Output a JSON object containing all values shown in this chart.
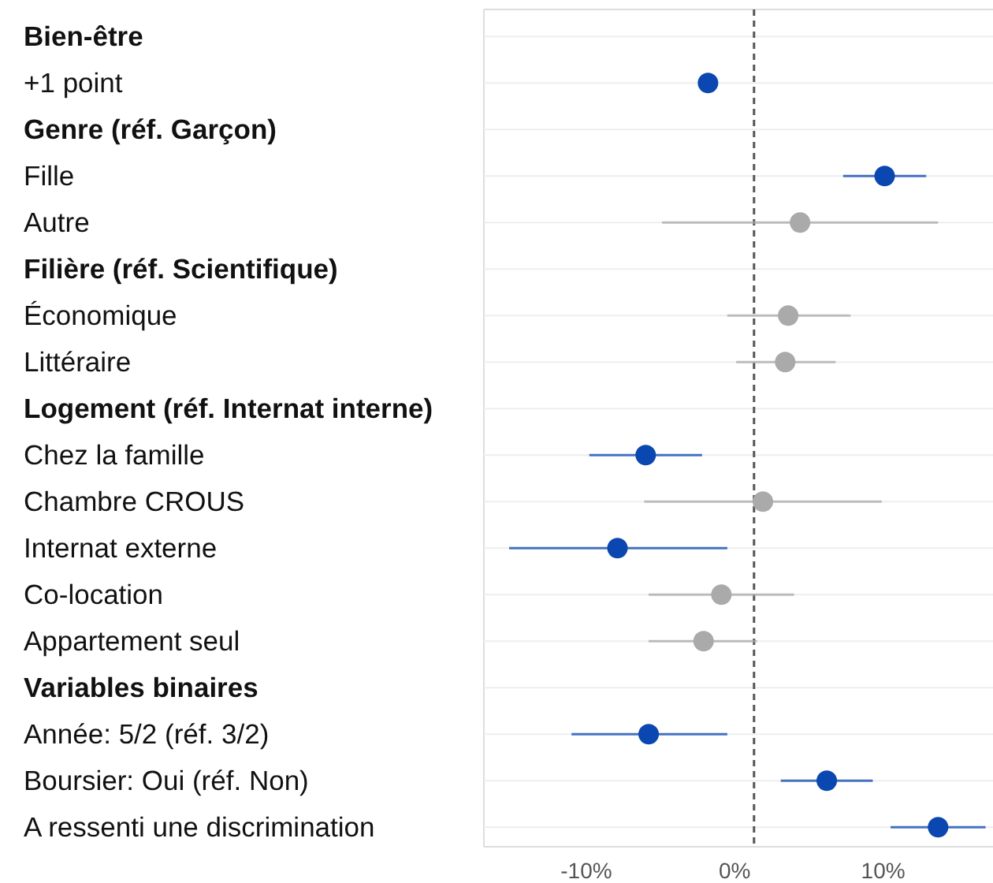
{
  "chart_data": {
    "type": "scatter",
    "orientation": "horizontal",
    "categories": [
      "Bien-être",
      "+1 point",
      "Genre (réf. Garçon)",
      "Fille",
      "Autre",
      "Filière (réf. Scientifique)",
      "Économique",
      "Littéraire",
      "Logement (réf. Internat interne)",
      "Chez la famille",
      "Chambre CROUS",
      "Internat externe",
      "Co-location",
      "Appartement seul",
      "Variables binaires",
      "Année: 5/2 (réf. 3/2)",
      "Boursier: Oui (réf. Non)",
      "A ressenti une discrimination"
    ],
    "values": [
      null,
      -1.8,
      null,
      10.1,
      4.4,
      null,
      3.6,
      3.4,
      null,
      -6.0,
      1.9,
      -7.9,
      -0.9,
      -2.1,
      null,
      -5.8,
      6.2,
      13.7
    ],
    "errors": [
      null,
      null,
      null,
      [
        7.3,
        12.9
      ],
      [
        -4.9,
        13.7
      ],
      null,
      [
        -0.5,
        7.8
      ],
      [
        0.1,
        6.8
      ],
      null,
      [
        -9.8,
        -2.2
      ],
      [
        -6.1,
        9.9
      ],
      [
        -15.2,
        -0.5
      ],
      [
        -5.8,
        4.0
      ],
      [
        -5.8,
        1.5
      ],
      null,
      [
        -11.0,
        -0.5
      ],
      [
        3.1,
        9.3
      ],
      [
        10.5,
        16.9
      ]
    ],
    "colors": [
      null,
      "#0a47b0",
      null,
      "#0a47b0",
      "#aaaaaa",
      null,
      "#aaaaaa",
      "#aaaaaa",
      null,
      "#0a47b0",
      "#aaaaaa",
      "#0a47b0",
      "#aaaaaa",
      "#aaaaaa",
      null,
      "#0a47b0",
      "#0a47b0",
      "#0a47b0"
    ],
    "xlim": [
      -16.9,
      17.4
    ],
    "xticks": [
      {
        "value": -10,
        "label": "-10%"
      },
      {
        "value": 0,
        "label": "0%"
      },
      {
        "value": 10,
        "label": "10%"
      }
    ],
    "ref_lines": [
      {
        "axis": "x",
        "value": 1.3,
        "color": "#555555",
        "line_style": "dashed"
      }
    ],
    "grid": "y",
    "marker": "circle"
  }
}
